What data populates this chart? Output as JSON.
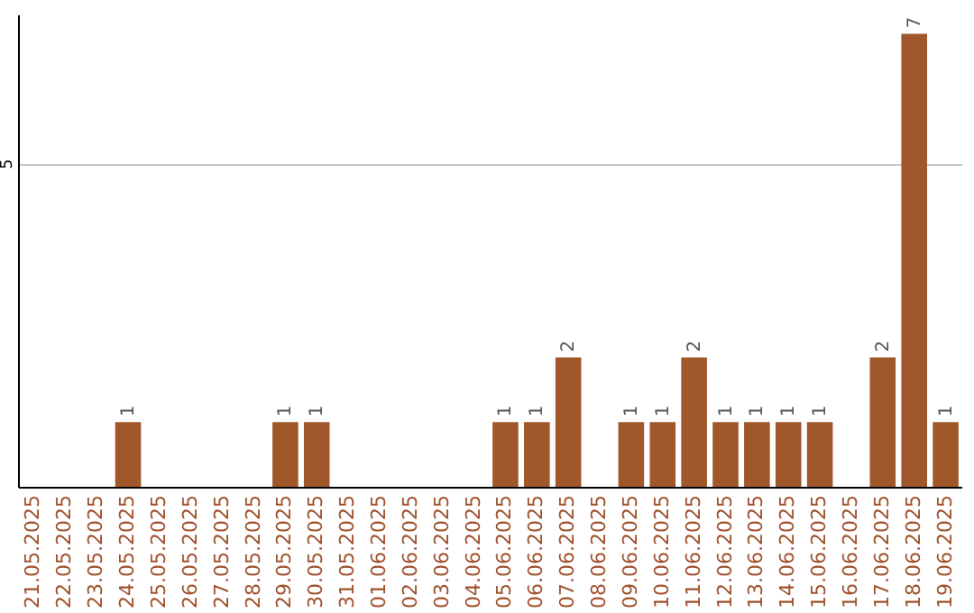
{
  "chart_data": {
    "type": "bar",
    "categories": [
      "21.05.2025",
      "22.05.2025",
      "23.05.2025",
      "24.05.2025",
      "25.05.2025",
      "26.05.2025",
      "27.05.2025",
      "28.05.2025",
      "29.05.2025",
      "30.05.2025",
      "31.05.2025",
      "01.06.2025",
      "02.06.2025",
      "03.06.2025",
      "04.06.2025",
      "05.06.2025",
      "06.06.2025",
      "07.06.2025",
      "08.06.2025",
      "09.06.2025",
      "10.06.2025",
      "11.06.2025",
      "12.06.2025",
      "13.06.2025",
      "14.06.2025",
      "15.06.2025",
      "16.06.2025",
      "17.06.2025",
      "18.06.2025",
      "19.06.2025"
    ],
    "values": [
      0,
      0,
      0,
      1,
      0,
      0,
      0,
      0,
      1,
      1,
      0,
      0,
      0,
      0,
      0,
      1,
      1,
      2,
      0,
      1,
      1,
      2,
      1,
      1,
      1,
      1,
      0,
      2,
      7,
      1
    ],
    "value_labels": [
      null,
      null,
      null,
      "1",
      null,
      null,
      null,
      null,
      "1",
      "1",
      null,
      null,
      null,
      null,
      null,
      "1",
      "1",
      "2",
      null,
      "1",
      "1",
      "2",
      "1",
      "1",
      "1",
      "1",
      null,
      "2",
      "7",
      "1"
    ],
    "color": "#a0582a",
    "ylim": [
      0,
      7.3
    ],
    "yticks": [
      5
    ],
    "grid": "y"
  }
}
